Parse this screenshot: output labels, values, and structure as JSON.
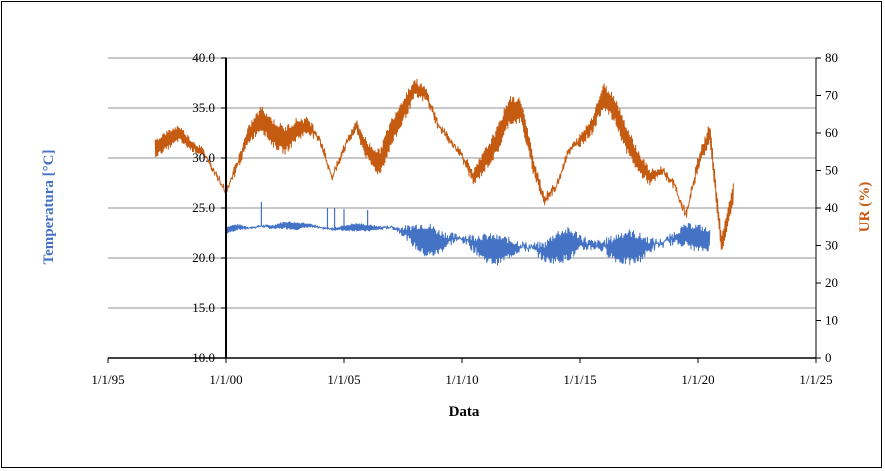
{
  "chart_data": {
    "type": "line",
    "title": "",
    "xlabel": "Data",
    "ylabel_left": "Temperatura [°C]",
    "ylabel_right": "UR (%)",
    "x_ticks": [
      "1/1/95",
      "1/1/00",
      "1/1/05",
      "1/1/10",
      "1/1/15",
      "1/1/20",
      "1/1/25"
    ],
    "x_tick_values": [
      1995,
      2000,
      2005,
      2010,
      2015,
      2020,
      2025
    ],
    "xlim": [
      1995,
      2025
    ],
    "y_left_ticks": [
      "10.0",
      "15.0",
      "20.0",
      "25.0",
      "30.0",
      "35.0",
      "40.0"
    ],
    "y_left_tick_values": [
      10,
      15,
      20,
      25,
      30,
      35,
      40
    ],
    "ylim_left": [
      10,
      40
    ],
    "y_right_ticks": [
      "0",
      "10",
      "20",
      "30",
      "40",
      "50",
      "60",
      "70",
      "80"
    ],
    "y_right_tick_values": [
      0,
      10,
      20,
      30,
      40,
      50,
      60,
      70,
      80
    ],
    "ylim_right": [
      0,
      80
    ],
    "grid": true,
    "series": [
      {
        "axis": "left",
        "color": "#4472c4",
        "x": [
          2000.0,
          2000.5,
          2001.0,
          2001.5,
          2002.0,
          2002.5,
          2003.0,
          2003.5,
          2004.0,
          2004.5,
          2005.0,
          2005.5,
          2006.0,
          2006.5,
          2007.0,
          2007.5,
          2008.0,
          2008.5,
          2009.0,
          2009.5,
          2010.0,
          2010.5,
          2011.0,
          2011.5,
          2012.0,
          2012.5,
          2013.0,
          2013.5,
          2014.0,
          2014.5,
          2015.0,
          2015.5,
          2016.0,
          2016.5,
          2017.0,
          2017.5,
          2018.0,
          2018.5,
          2019.0,
          2019.5,
          2020.0,
          2020.5
        ],
        "values": [
          22.8,
          23.1,
          23.0,
          23.2,
          23.1,
          23.3,
          23.2,
          23.3,
          23.0,
          22.9,
          23.0,
          23.1,
          23.0,
          23.0,
          23.1,
          22.7,
          22.2,
          21.8,
          21.6,
          21.9,
          22.0,
          21.5,
          21.0,
          20.8,
          21.0,
          21.2,
          21.0,
          20.6,
          21.1,
          21.4,
          21.5,
          21.3,
          21.2,
          21.0,
          21.1,
          21.0,
          21.3,
          21.5,
          22.0,
          22.3,
          22.0,
          21.8
        ],
        "amplitude": [
          0.3,
          0.3,
          0.3,
          0.3,
          0.3,
          0.3,
          0.3,
          0.3,
          0.3,
          0.3,
          0.3,
          0.3,
          0.3,
          0.3,
          0.4,
          0.9,
          1.2,
          1.4,
          1.3,
          1.2,
          1.3,
          1.3,
          1.2,
          1.2,
          1.2,
          1.3,
          1.3,
          1.2,
          1.3,
          1.4,
          1.4,
          1.4,
          1.4,
          1.4,
          1.4,
          1.4,
          1.3,
          1.2,
          1.1,
          1.0,
          1.1,
          1.1
        ]
      },
      {
        "axis": "right",
        "color": "#c55a11",
        "x": [
          1997.0,
          1997.5,
          1998.0,
          1998.5,
          1999.0,
          1999.5,
          2000.0,
          2000.5,
          2001.0,
          2001.5,
          2002.0,
          2002.5,
          2003.0,
          2003.5,
          2004.0,
          2004.5,
          2005.0,
          2005.5,
          2006.0,
          2006.5,
          2007.0,
          2007.5,
          2008.0,
          2008.5,
          2009.0,
          2009.5,
          2010.0,
          2010.5,
          2011.0,
          2011.5,
          2012.0,
          2012.5,
          2013.0,
          2013.5,
          2014.0,
          2014.5,
          2015.0,
          2015.5,
          2016.0,
          2016.5,
          2017.0,
          2017.5,
          2018.0,
          2018.5,
          2019.0,
          2019.5,
          2020.0,
          2020.5,
          2021.0,
          2021.5
        ],
        "values": [
          56,
          58,
          60,
          57,
          55,
          50,
          44,
          52,
          60,
          64,
          60,
          58,
          61,
          62,
          58,
          48,
          56,
          62,
          55,
          52,
          60,
          66,
          72,
          70,
          62,
          58,
          54,
          48,
          53,
          58,
          66,
          66,
          52,
          42,
          46,
          55,
          58,
          62,
          70,
          66,
          58,
          52,
          48,
          50,
          46,
          38,
          52,
          60,
          30,
          44
        ],
        "amplitude": [
          2,
          2,
          2,
          2,
          2,
          3,
          3,
          3,
          3,
          3,
          3,
          3,
          3,
          3,
          3,
          3,
          3,
          3,
          3,
          3,
          3,
          3,
          3,
          3,
          3,
          3,
          3,
          3,
          3,
          3,
          3,
          3,
          3,
          3,
          3,
          3,
          3,
          3,
          3,
          3,
          3,
          3,
          3,
          3,
          3,
          3,
          3,
          3,
          2,
          2
        ]
      }
    ]
  }
}
